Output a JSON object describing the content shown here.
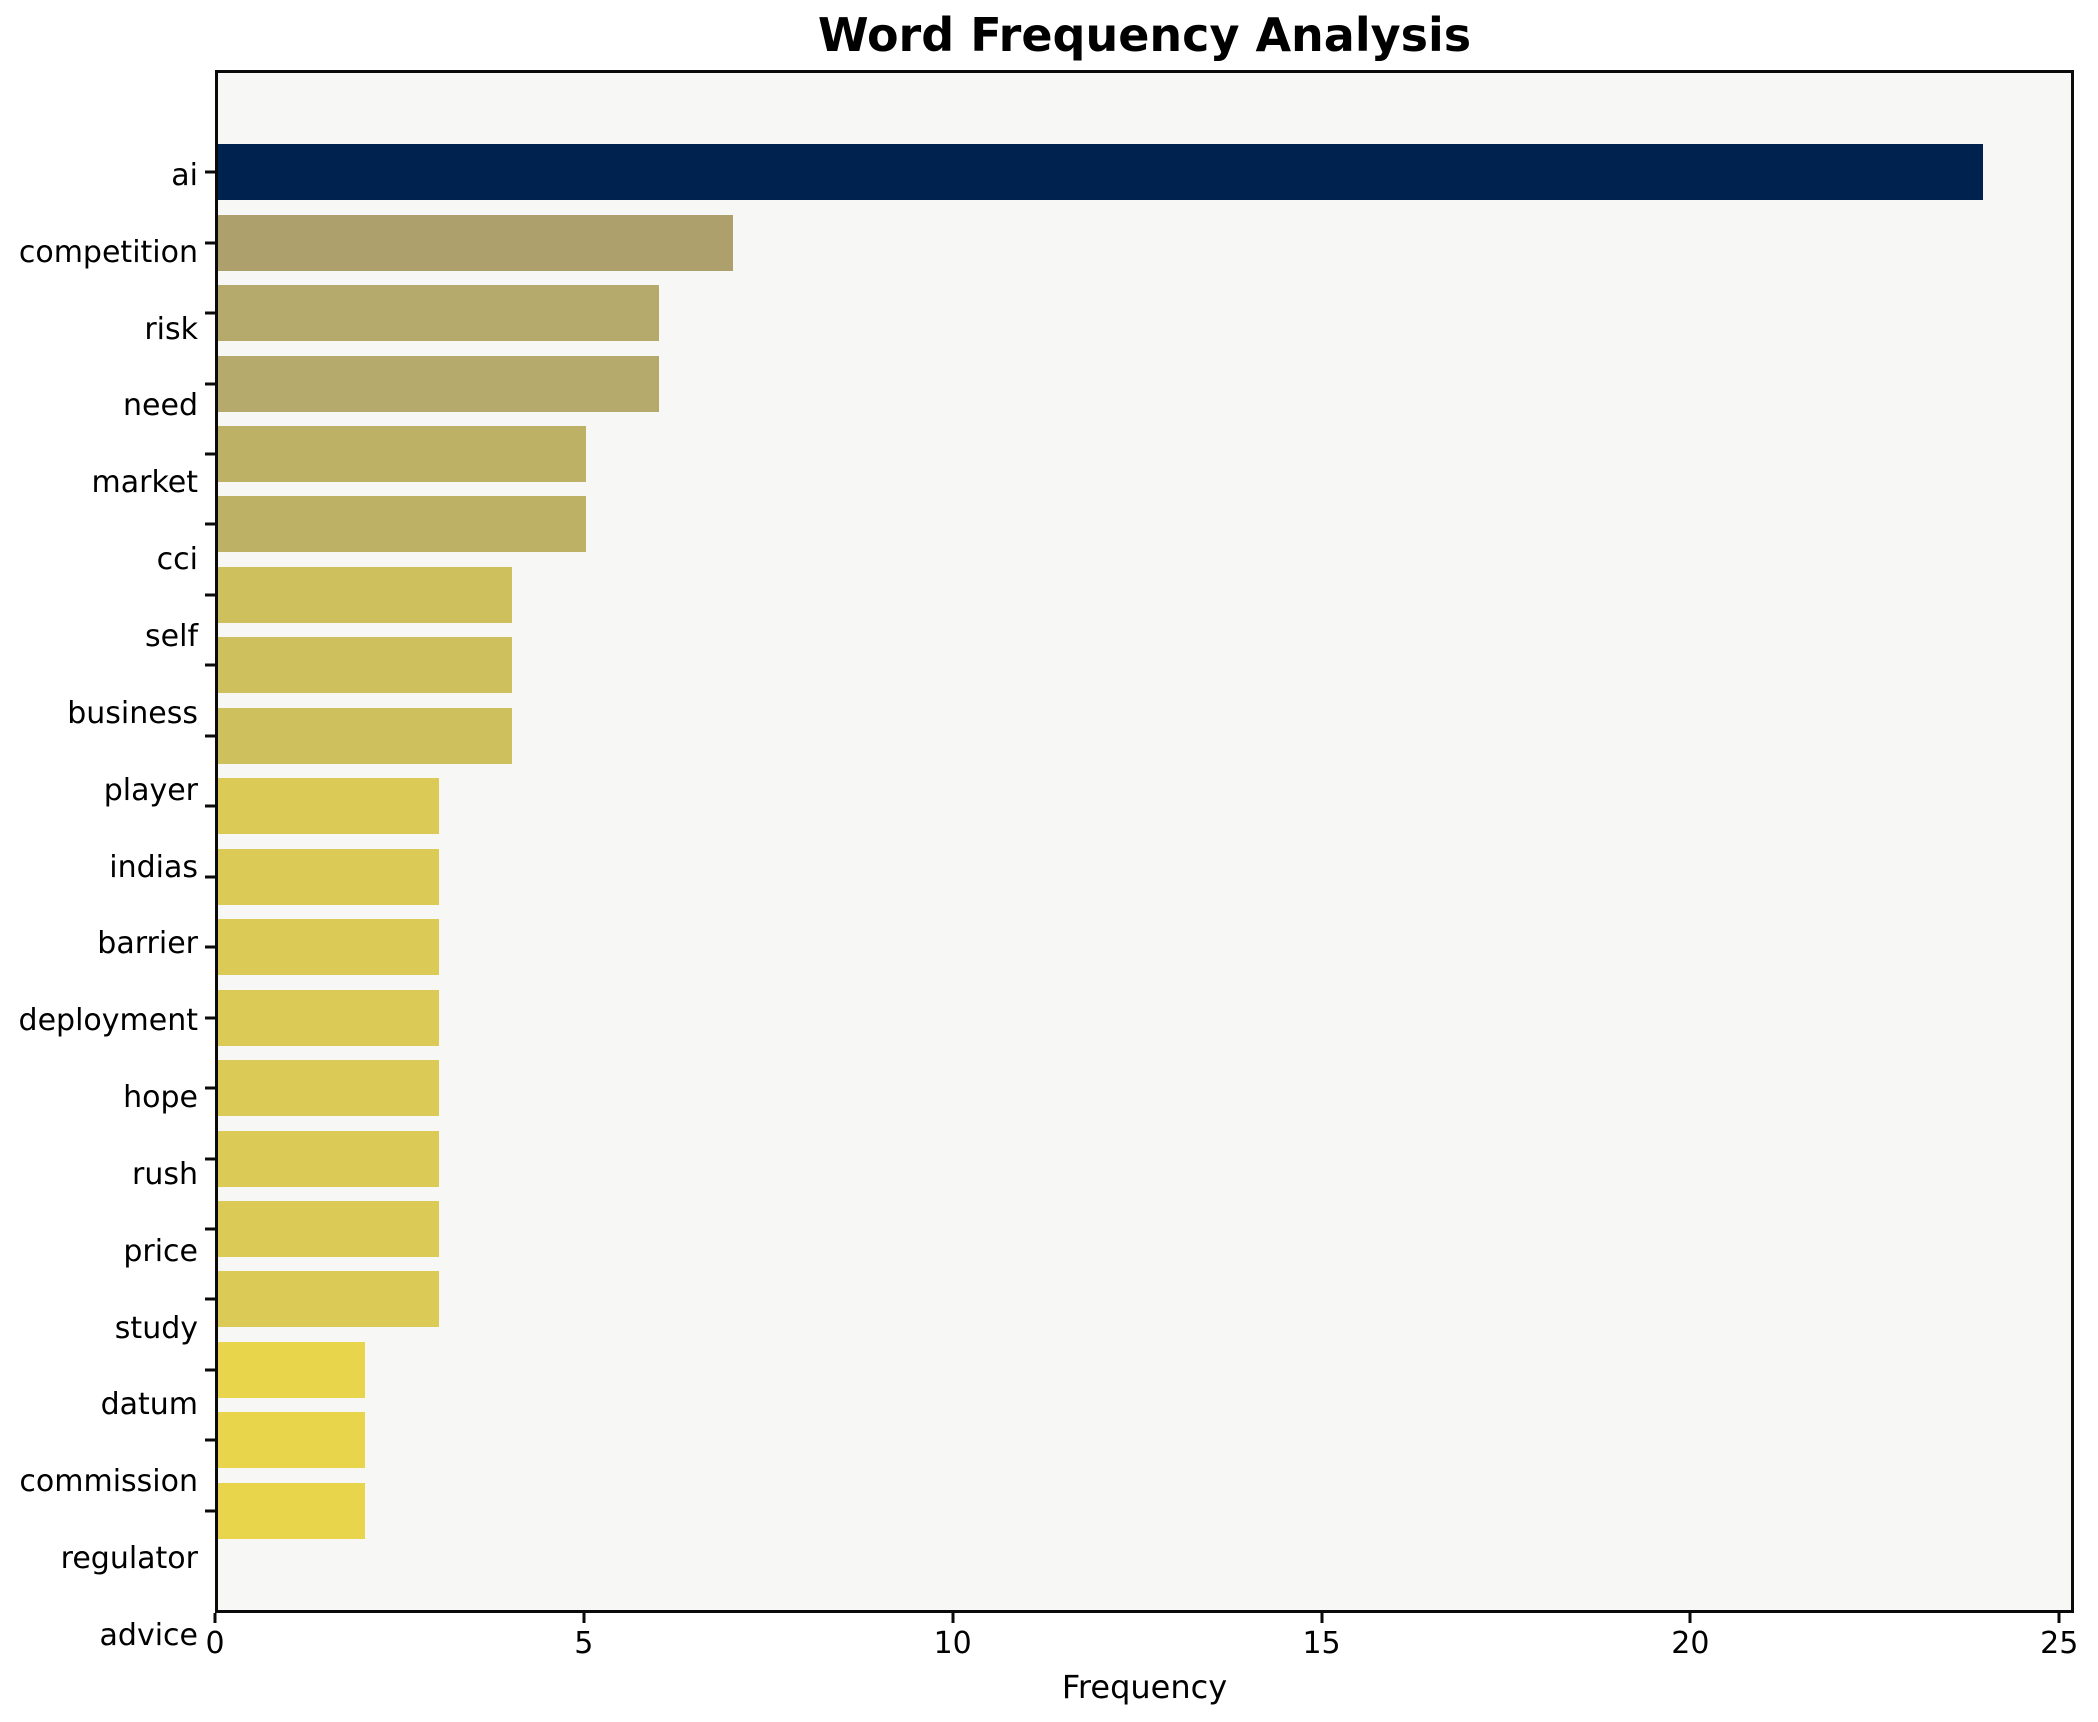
{
  "chart": {
    "title": "Word Frequency Analysis",
    "xlabel": "Frequency"
  },
  "chart_data": {
    "type": "bar",
    "orientation": "horizontal",
    "title": "Word Frequency Analysis",
    "xlabel": "Frequency",
    "ylabel": "",
    "grid": false,
    "legend": false,
    "xlim": [
      0,
      25.2
    ],
    "xticks": [
      0,
      5,
      10,
      15,
      20,
      25
    ],
    "categories": [
      "ai",
      "competition",
      "risk",
      "need",
      "market",
      "cci",
      "self",
      "business",
      "player",
      "indias",
      "barrier",
      "deployment",
      "hope",
      "rush",
      "price",
      "study",
      "datum",
      "commission",
      "regulator",
      "advice"
    ],
    "values": [
      24,
      7,
      6,
      6,
      5,
      5,
      4,
      4,
      4,
      3,
      3,
      3,
      3,
      3,
      3,
      3,
      3,
      2,
      2,
      2
    ],
    "bar_colors": [
      "#00224e",
      "#ada06c",
      "#b5aa6b",
      "#b5aa6b",
      "#bdb165",
      "#bdb165",
      "#cfc05e",
      "#cfc05e",
      "#cfc05e",
      "#dbca55",
      "#dbca55",
      "#dbca55",
      "#dbca55",
      "#dbca55",
      "#dbca55",
      "#dbca55",
      "#dbca55",
      "#e9d54b",
      "#e9d54b",
      "#e9d54b"
    ],
    "plot_background": "#f7f7f5",
    "figure_background": "#ffffff",
    "spine_color": "#0a0a0a"
  }
}
